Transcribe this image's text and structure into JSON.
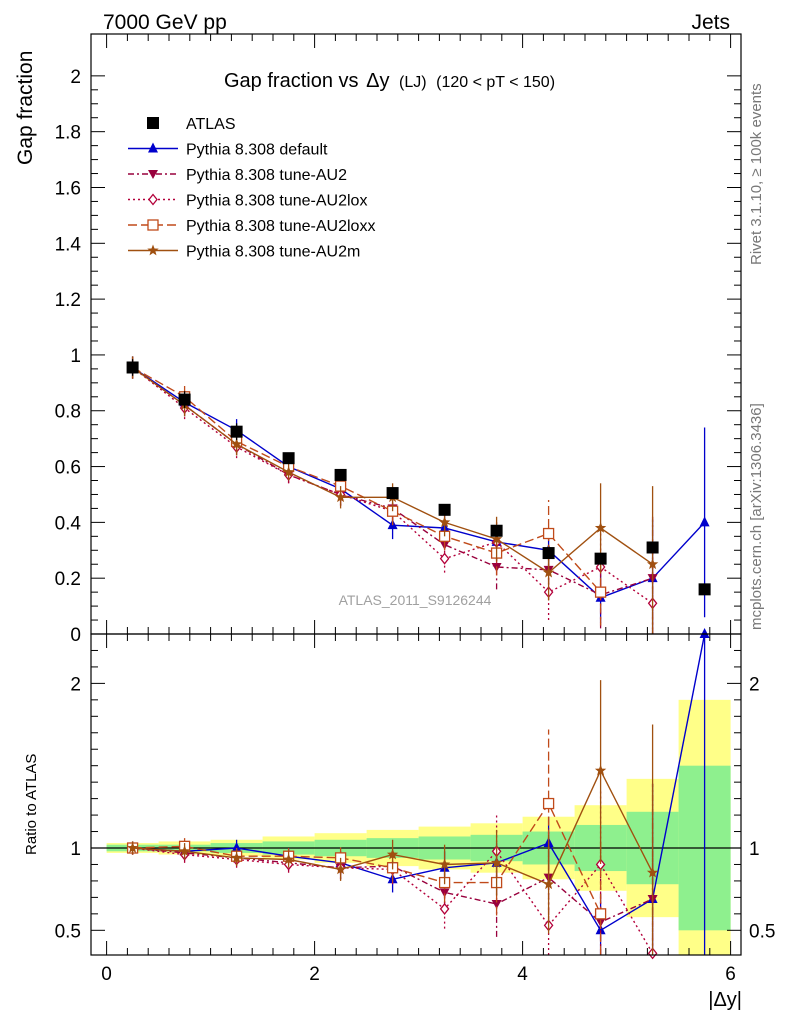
{
  "header": {
    "left": "7000 GeV pp",
    "right": "Jets"
  },
  "side_texts": {
    "rivet": "Rivet 3.1.10, ≥ 100k events",
    "mcplots": "mcplots.cern.ch [arXiv:1306.3436]"
  },
  "watermark": "ATLAS_2011_S9126244",
  "colors": {
    "data": "#000000",
    "default": "#0000cc",
    "au2": "#99003d",
    "au2lox": "#b3003a",
    "au2loxx": "#c04a1a",
    "au2m": "#a05010",
    "band_inner": "#8ef08e",
    "band_outer": "#ffff88"
  },
  "chart_data": [
    {
      "type": "scatter",
      "title": "Gap fraction vs Δy",
      "title_prefix": "Gap fraction vs",
      "title_var": "Δy",
      "title_suffix": "(LJ)",
      "title_cut": "(120 < pT < 150)",
      "ylabel": "Gap fraction",
      "xlim": [
        -0.15,
        6.1
      ],
      "ylim": [
        0,
        2.15
      ],
      "yticks": [
        "0",
        "0.2",
        "0.4",
        "0.6",
        "0.8",
        "1",
        "1.2",
        "1.4",
        "1.6",
        "1.8",
        "2"
      ],
      "x": [
        0.25,
        0.75,
        1.25,
        1.75,
        2.25,
        2.75,
        3.25,
        3.75,
        4.25,
        4.75,
        5.25,
        5.75
      ],
      "series": [
        {
          "key": "data",
          "name": "ATLAS",
          "style": "data",
          "values": [
            0.955,
            0.84,
            0.725,
            0.63,
            0.57,
            0.505,
            0.445,
            0.37,
            0.29,
            0.27,
            0.31,
            0.16
          ],
          "errors": [
            0.03,
            0.03,
            0.03,
            0.02,
            0.02,
            0.02,
            0.02,
            0.02,
            0.02,
            0.02,
            0.02,
            0.02
          ]
        },
        {
          "key": "default",
          "name": "Pythia 8.308 default",
          "style": "solid",
          "marker": "tri-up",
          "values": [
            0.955,
            0.83,
            0.73,
            0.6,
            0.52,
            0.39,
            0.38,
            0.33,
            0.3,
            0.13,
            0.2,
            0.4
          ],
          "errors": [
            0.04,
            0.04,
            0.04,
            0.03,
            0.04,
            0.05,
            0.05,
            0.06,
            0.07,
            0.09,
            0.21,
            0.34
          ]
        },
        {
          "key": "au2",
          "name": "Pythia 8.308 tune-AU2",
          "style": "dash-dot",
          "marker": "tri-down",
          "values": [
            0.955,
            0.82,
            0.68,
            0.57,
            0.5,
            0.45,
            0.32,
            0.24,
            0.23,
            0.14,
            0.2,
            null
          ],
          "errors": [
            0.04,
            0.04,
            0.04,
            0.03,
            0.04,
            0.05,
            0.05,
            0.08,
            0.1,
            0.12,
            0.22,
            null
          ]
        },
        {
          "key": "au2lox",
          "name": "Pythia 8.308 tune-AU2lox",
          "style": "dot",
          "marker": "diamond",
          "values": [
            0.955,
            0.81,
            0.67,
            0.57,
            0.5,
            0.44,
            0.27,
            0.33,
            0.15,
            0.24,
            0.11,
            null
          ],
          "errors": [
            0.04,
            0.04,
            0.04,
            0.03,
            0.04,
            0.05,
            0.05,
            0.08,
            0.1,
            0.12,
            0.2,
            null
          ]
        },
        {
          "key": "au2loxx",
          "name": "Pythia 8.308 tune-AU2loxx",
          "style": "long-dash",
          "marker": "square-open",
          "values": [
            0.955,
            0.85,
            0.69,
            0.6,
            0.53,
            0.44,
            0.35,
            0.29,
            0.36,
            0.15,
            null,
            null
          ],
          "errors": [
            0.04,
            0.04,
            0.04,
            0.03,
            0.04,
            0.05,
            0.05,
            0.08,
            0.12,
            0.12,
            null,
            null
          ]
        },
        {
          "key": "au2m",
          "name": "Pythia 8.308 tune-AU2m",
          "style": "solid",
          "marker": "star",
          "values": [
            0.955,
            0.82,
            0.68,
            0.58,
            0.49,
            0.49,
            0.4,
            0.34,
            0.22,
            0.38,
            0.25,
            null
          ],
          "errors": [
            0.04,
            0.04,
            0.04,
            0.03,
            0.04,
            0.05,
            0.05,
            0.08,
            0.1,
            0.16,
            0.28,
            null
          ]
        }
      ]
    },
    {
      "type": "scatter",
      "title": "Ratio to ATLAS",
      "ylabel": "Ratio to ATLAS",
      "xlabel": "|Δy|",
      "xlim": [
        -0.15,
        6.1
      ],
      "ylim": [
        0.35,
        2.3
      ],
      "xticks": [
        "0",
        "2",
        "4",
        "6"
      ],
      "yticks": [
        "0.5",
        "1",
        "2"
      ],
      "x": [
        0.25,
        0.75,
        1.25,
        1.75,
        2.25,
        2.75,
        3.25,
        3.75,
        4.25,
        4.75,
        5.25,
        5.75
      ],
      "band_edges": [
        0,
        0.5,
        1.0,
        1.5,
        2.0,
        2.5,
        3.0,
        3.5,
        4.0,
        4.5,
        5.0,
        5.5,
        6.0
      ],
      "band_inner": [
        0.02,
        0.02,
        0.03,
        0.04,
        0.05,
        0.06,
        0.07,
        0.08,
        0.1,
        0.14,
        0.22,
        0.5
      ],
      "band_outer": [
        0.03,
        0.04,
        0.05,
        0.07,
        0.09,
        0.11,
        0.13,
        0.15,
        0.19,
        0.26,
        0.42,
        0.9
      ],
      "series": [
        {
          "key": "default",
          "name": "Pythia 8.308 default",
          "values": [
            1.0,
            0.98,
            1.0,
            0.95,
            0.91,
            0.81,
            0.88,
            0.91,
            1.03,
            0.5,
            0.69,
            2.3
          ],
          "errors": [
            0.04,
            0.04,
            0.05,
            0.05,
            0.07,
            0.08,
            0.1,
            0.12,
            0.16,
            0.22,
            0.7,
            2.0
          ]
        },
        {
          "key": "au2",
          "name": "Pythia 8.308 tune-AU2",
          "values": [
            1.0,
            0.97,
            0.94,
            0.91,
            0.88,
            0.89,
            0.73,
            0.66,
            0.82,
            0.55,
            0.69,
            null
          ],
          "errors": [
            0.04,
            0.05,
            0.05,
            0.05,
            0.07,
            0.09,
            0.12,
            0.2,
            0.3,
            0.4,
            0.7,
            null
          ]
        },
        {
          "key": "au2lox",
          "name": "Pythia 8.308 tune-AU2lox",
          "values": [
            1.0,
            0.96,
            0.93,
            0.9,
            0.88,
            0.87,
            0.63,
            0.98,
            0.53,
            0.9,
            0.36,
            null
          ],
          "errors": [
            0.04,
            0.05,
            0.05,
            0.05,
            0.07,
            0.09,
            0.12,
            0.22,
            0.3,
            0.45,
            0.6,
            null
          ]
        },
        {
          "key": "au2loxx",
          "name": "Pythia 8.308 tune-AU2loxx",
          "values": [
            1.0,
            1.01,
            0.95,
            0.95,
            0.94,
            0.88,
            0.79,
            0.79,
            1.27,
            0.6,
            null,
            null
          ],
          "errors": [
            0.04,
            0.05,
            0.05,
            0.05,
            0.07,
            0.09,
            0.12,
            0.2,
            0.45,
            0.45,
            null,
            null
          ]
        },
        {
          "key": "au2m",
          "name": "Pythia 8.308 tune-AU2m",
          "values": [
            1.0,
            0.98,
            0.94,
            0.93,
            0.87,
            0.96,
            0.9,
            0.91,
            0.78,
            1.47,
            0.85,
            null
          ],
          "errors": [
            0.04,
            0.05,
            0.05,
            0.05,
            0.07,
            0.09,
            0.12,
            0.2,
            0.3,
            0.55,
            0.9,
            null
          ]
        }
      ]
    }
  ]
}
